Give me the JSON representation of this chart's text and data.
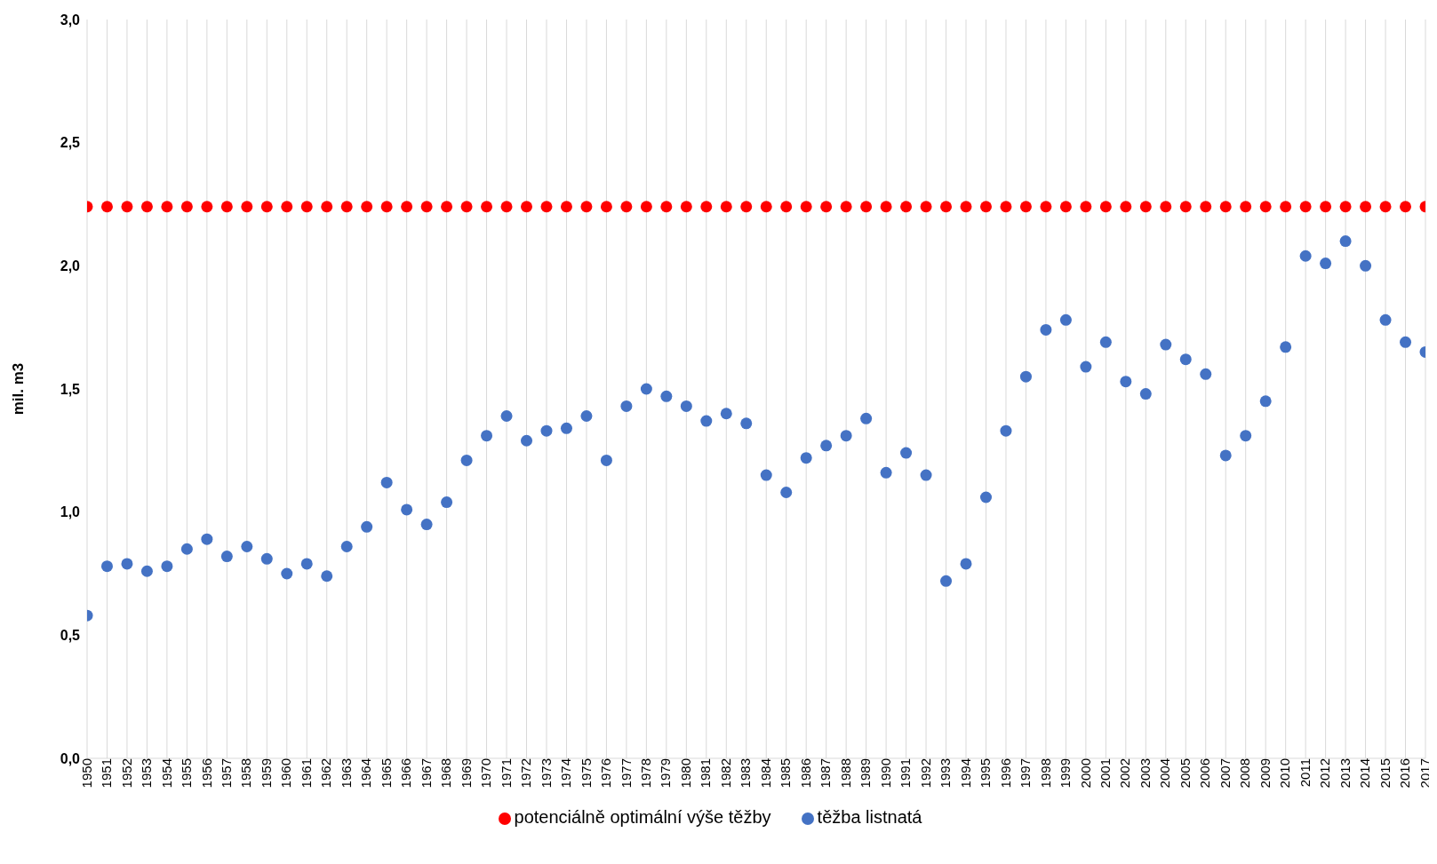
{
  "chart_data": {
    "type": "scatter",
    "ylabel": "mil. m3",
    "categories": [
      "1950",
      "1951",
      "1952",
      "1953",
      "1954",
      "1955",
      "1956",
      "1957",
      "1958",
      "1959",
      "1960",
      "1961",
      "1962",
      "1963",
      "1964",
      "1965",
      "1966",
      "1967",
      "1968",
      "1969",
      "1970",
      "1971",
      "1972",
      "1973",
      "1974",
      "1975",
      "1976",
      "1977",
      "1978",
      "1979",
      "1980",
      "1981",
      "1982",
      "1983",
      "1984",
      "1985",
      "1986",
      "1987",
      "1988",
      "1989",
      "1990",
      "1991",
      "1992",
      "1993",
      "1994",
      "1995",
      "1996",
      "1997",
      "1998",
      "1999",
      "2000",
      "2001",
      "2002",
      "2003",
      "2004",
      "2005",
      "2006",
      "2007",
      "2008",
      "2009",
      "2010",
      "2011",
      "2012",
      "2013",
      "2014",
      "2015",
      "2016",
      "2017"
    ],
    "series": [
      {
        "name": "těžba listnatá",
        "color": "#4472c4",
        "values": [
          0.58,
          0.78,
          0.79,
          0.76,
          0.78,
          0.85,
          0.89,
          0.82,
          0.86,
          0.81,
          0.75,
          0.79,
          0.74,
          0.86,
          0.94,
          1.12,
          1.01,
          0.95,
          1.04,
          1.21,
          1.31,
          1.39,
          1.29,
          1.33,
          1.34,
          1.39,
          1.21,
          1.43,
          1.5,
          1.47,
          1.43,
          1.37,
          1.4,
          1.36,
          1.15,
          1.08,
          1.22,
          1.27,
          1.31,
          1.38,
          1.16,
          1.24,
          1.15,
          0.72,
          0.79,
          1.06,
          1.33,
          1.55,
          1.74,
          1.78,
          1.59,
          1.69,
          1.53,
          1.48,
          1.68,
          1.62,
          1.56,
          1.23,
          1.31,
          1.45,
          1.67,
          2.04,
          2.01,
          2.1,
          2.0,
          1.78,
          1.69,
          1.65
        ]
      },
      {
        "name": "potenciálně optimální výše těžby",
        "color": "#ff0000",
        "values": [
          2.24,
          2.24,
          2.24,
          2.24,
          2.24,
          2.24,
          2.24,
          2.24,
          2.24,
          2.24,
          2.24,
          2.24,
          2.24,
          2.24,
          2.24,
          2.24,
          2.24,
          2.24,
          2.24,
          2.24,
          2.24,
          2.24,
          2.24,
          2.24,
          2.24,
          2.24,
          2.24,
          2.24,
          2.24,
          2.24,
          2.24,
          2.24,
          2.24,
          2.24,
          2.24,
          2.24,
          2.24,
          2.24,
          2.24,
          2.24,
          2.24,
          2.24,
          2.24,
          2.24,
          2.24,
          2.24,
          2.24,
          2.24,
          2.24,
          2.24,
          2.24,
          2.24,
          2.24,
          2.24,
          2.24,
          2.24,
          2.24,
          2.24,
          2.24,
          2.24,
          2.24,
          2.24,
          2.24,
          2.24,
          2.24,
          2.24,
          2.24,
          2.24
        ]
      }
    ],
    "ylim": [
      0,
      3
    ],
    "yticks": [
      {
        "value": 0,
        "label": "0,0"
      },
      {
        "value": 0.5,
        "label": "0,5"
      },
      {
        "value": 1,
        "label": "1,0"
      },
      {
        "value": 1.5,
        "label": "1,5"
      },
      {
        "value": 2,
        "label": "2,0"
      },
      {
        "value": 2.5,
        "label": "2,5"
      },
      {
        "value": 3,
        "label": "3,0"
      }
    ],
    "grid": "x",
    "legend": "bottom",
    "marker": "circle"
  }
}
